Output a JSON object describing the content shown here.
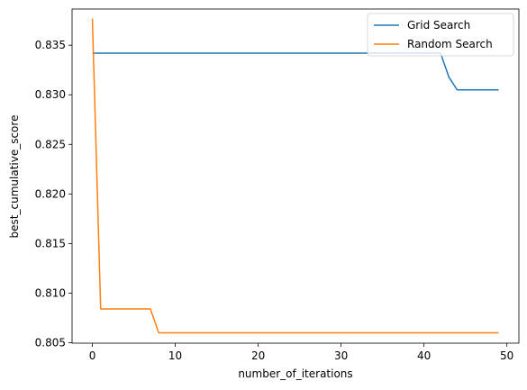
{
  "chart_data": {
    "type": "line",
    "xlabel": "number_of_iterations",
    "ylabel": "best_cumulative_score",
    "xlim": [
      -2.45,
      51.45
    ],
    "ylim": [
      0.80495,
      0.83865
    ],
    "xticks": [
      0,
      10,
      20,
      30,
      40,
      50
    ],
    "xtick_labels": [
      "0",
      "10",
      "20",
      "30",
      "40",
      "50"
    ],
    "yticks": [
      0.805,
      0.81,
      0.815,
      0.82,
      0.825,
      0.83,
      0.835
    ],
    "ytick_labels": [
      "0.805",
      "0.810",
      "0.815",
      "0.820",
      "0.825",
      "0.830",
      "0.835"
    ],
    "grid": false,
    "legend_position": "top-right",
    "series": [
      {
        "name": "Grid Search",
        "color": "#1f77b4",
        "x": [
          0,
          42,
          43,
          44,
          49
        ],
        "y": [
          0.8342,
          0.8342,
          0.8318,
          0.8305,
          0.8305
        ]
      },
      {
        "name": "Random Search",
        "color": "#ff7f0e",
        "x": [
          0,
          1,
          7,
          8,
          49
        ],
        "y": [
          0.8377,
          0.8084,
          0.8084,
          0.806,
          0.806
        ]
      }
    ]
  }
}
